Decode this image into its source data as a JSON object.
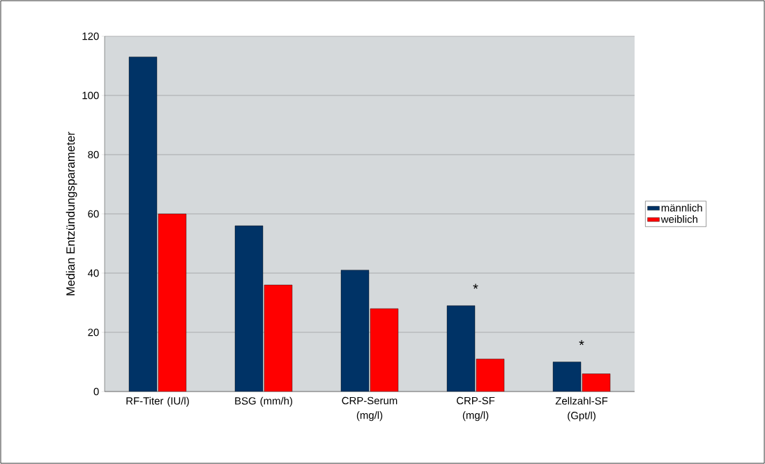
{
  "chart_data": {
    "type": "bar",
    "ylabel": "Median Entzündungsparameter",
    "categories": [
      "RF-Titer (IU/l)",
      "BSG (mm/h)",
      "CRP-Serum (mg/l)",
      "CRP-SF (mg/l)",
      "Zellzahl-SF (Gpt/l)"
    ],
    "series": [
      {
        "name": "männlich",
        "color": "#003366",
        "values": [
          113,
          56,
          41,
          29,
          10
        ]
      },
      {
        "name": "weiblich",
        "color": "#ff0000",
        "values": [
          60,
          36,
          28,
          11,
          6
        ]
      }
    ],
    "ylim": [
      0,
      120
    ],
    "yticks": [
      0,
      20,
      40,
      60,
      80,
      100,
      120
    ],
    "grid": "y",
    "legend": "right",
    "annotations": [
      "*",
      "*"
    ]
  }
}
